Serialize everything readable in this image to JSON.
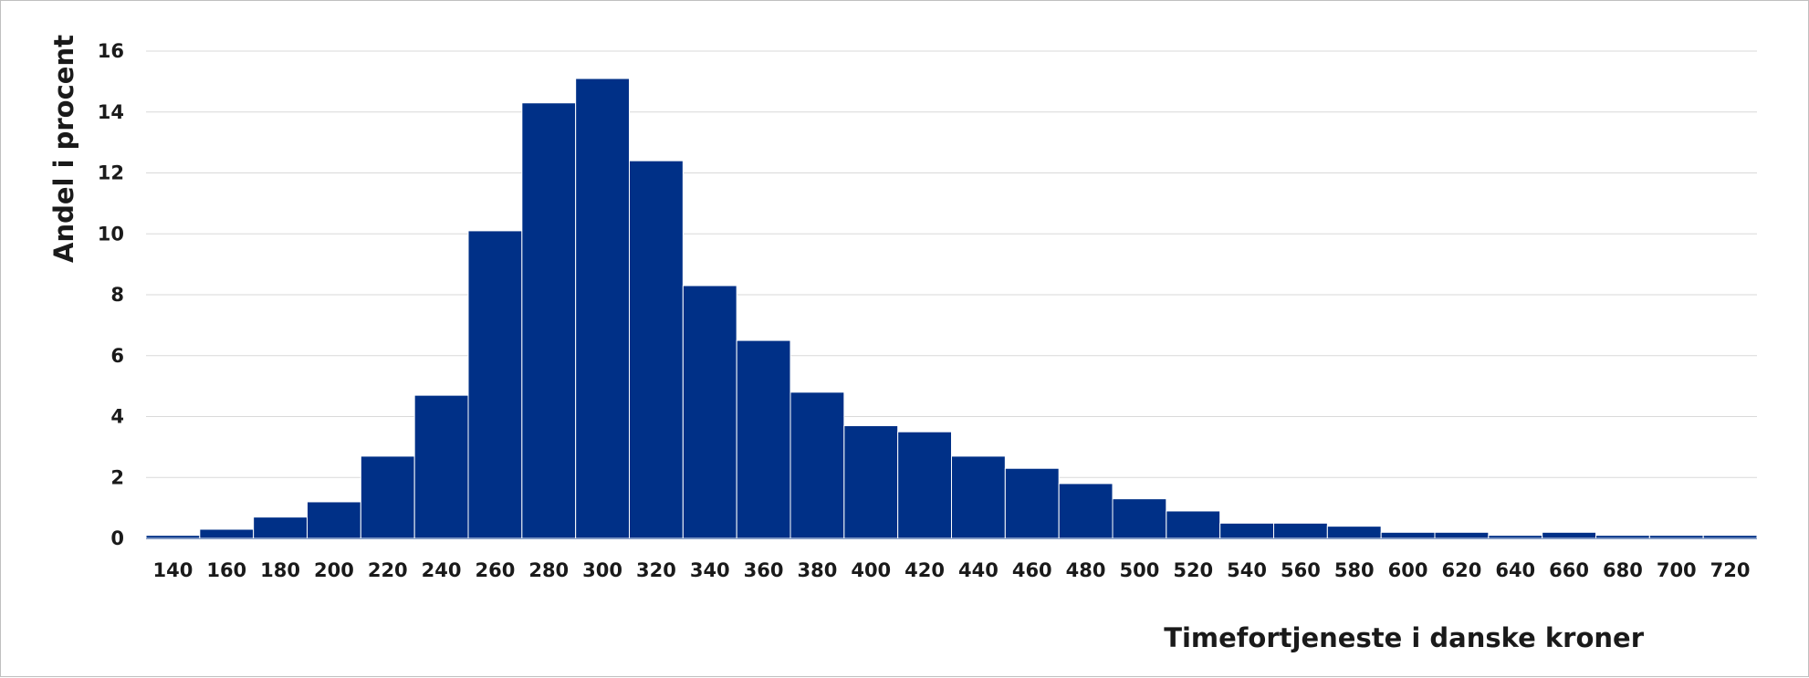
{
  "chart_data": {
    "type": "bar",
    "title": "",
    "xlabel": "Timefortjeneste i danske kroner",
    "ylabel": "Andel i procent",
    "ylim": [
      0,
      16
    ],
    "yticks": [
      "0",
      "2",
      "4",
      "6",
      "8",
      "10",
      "12",
      "14",
      "16"
    ],
    "grid": true,
    "bar_color": "#003087",
    "categories": [
      "140",
      "160",
      "180",
      "200",
      "220",
      "240",
      "260",
      "280",
      "300",
      "320",
      "340",
      "360",
      "380",
      "400",
      "420",
      "440",
      "460",
      "480",
      "500",
      "520",
      "540",
      "560",
      "580",
      "600",
      "620",
      "640",
      "660",
      "680",
      "700",
      "720"
    ],
    "values": [
      0.1,
      0.3,
      0.7,
      1.2,
      2.7,
      4.7,
      10.1,
      14.3,
      15.1,
      12.4,
      8.3,
      6.5,
      4.8,
      3.7,
      3.5,
      2.7,
      2.3,
      1.8,
      1.3,
      0.9,
      0.5,
      0.5,
      0.4,
      0.2,
      0.2,
      0.1,
      0.2,
      0.1,
      0.1,
      0.1
    ]
  }
}
